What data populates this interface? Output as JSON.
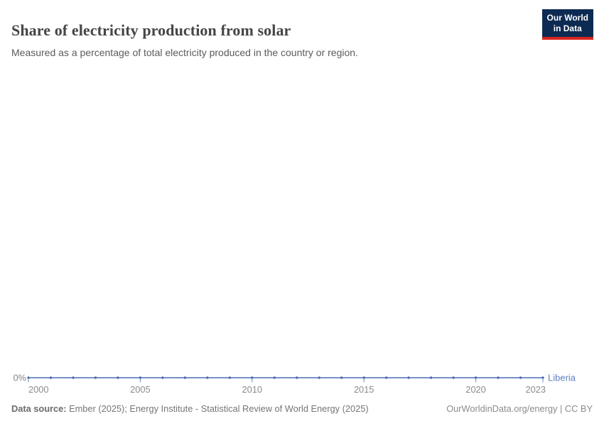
{
  "header": {
    "title": "Share of electricity production from solar",
    "subtitle": "Measured as a percentage of total electricity produced in the country or region.",
    "logo": {
      "line1": "Our World",
      "line2": "in Data"
    }
  },
  "chart_data": {
    "type": "line",
    "title": "Share of electricity production from solar",
    "subtitle": "Measured as a percentage of total electricity produced in the country or region.",
    "x": [
      2000,
      2001,
      2002,
      2003,
      2004,
      2005,
      2006,
      2007,
      2008,
      2009,
      2010,
      2011,
      2012,
      2013,
      2014,
      2015,
      2016,
      2017,
      2018,
      2019,
      2020,
      2021,
      2022,
      2023
    ],
    "series": [
      {
        "name": "Liberia",
        "values": [
          0,
          0,
          0,
          0,
          0,
          0,
          0,
          0,
          0,
          0,
          0,
          0,
          0,
          0,
          0,
          0,
          0,
          0,
          0,
          0,
          0,
          0,
          0,
          0
        ]
      }
    ],
    "x_ticks": [
      2000,
      2005,
      2010,
      2015,
      2020,
      2023
    ],
    "y_ticks": [
      "0%"
    ],
    "xlim": [
      2000,
      2023
    ],
    "ylim": [
      0,
      0
    ],
    "xlabel": "",
    "ylabel": "",
    "grid": false,
    "legend_position": "end-of-line",
    "entity_label": "Liberia"
  },
  "colors": {
    "line": "#4C6DB2",
    "entity_label": "#5b7ec2",
    "tick_label": "#8b8b8b",
    "y_tick_label": "#858585",
    "logo_bg": "#0d2a52",
    "logo_accent": "#d8251d"
  },
  "footer": {
    "source_label": "Data source:",
    "source_text": " Ember (2025); Energy Institute - Statistical Review of World Energy (2025)",
    "link_text": "OurWorldinData.org/energy | CC BY"
  }
}
